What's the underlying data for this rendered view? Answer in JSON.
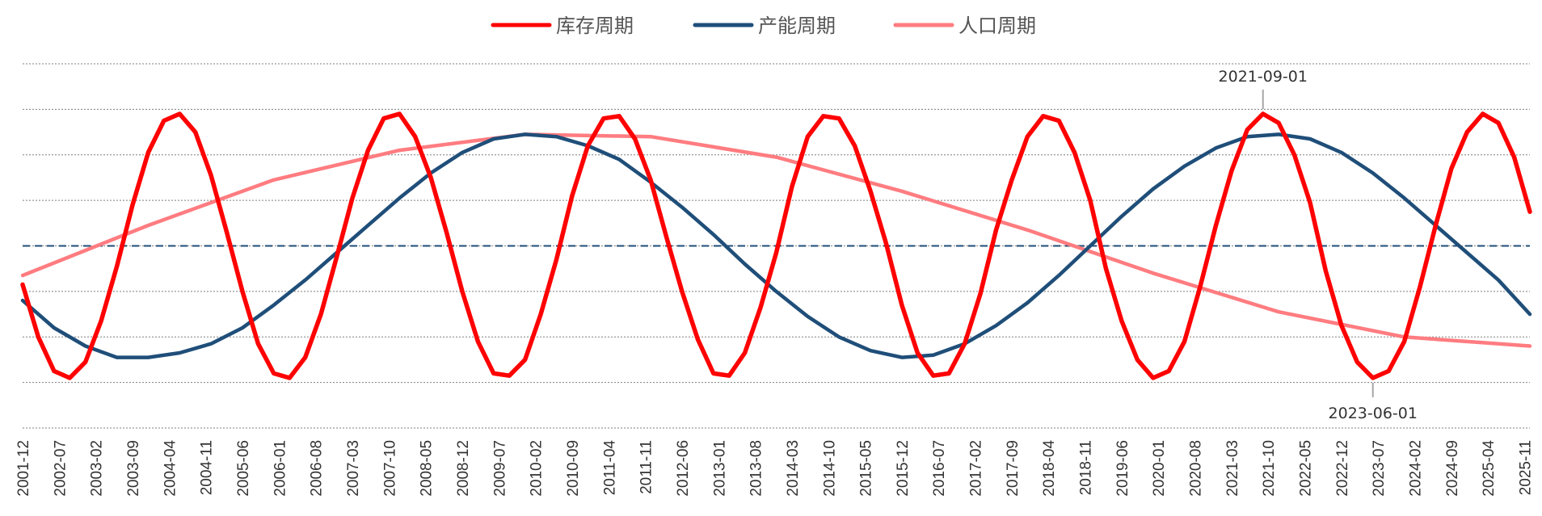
{
  "chart_data": {
    "type": "line",
    "title": "",
    "xlabel": "",
    "ylabel": "",
    "grid": true,
    "legend_position": "top-center",
    "ylim": [
      -4,
      4
    ],
    "y_gridlines": [
      -4,
      -3,
      -2,
      -1,
      0,
      1,
      2,
      3,
      4
    ],
    "reference_line": {
      "y": 0,
      "color": "#1f4e79",
      "style": "dashed"
    },
    "x_tick_labels": [
      "2001-12",
      "2002-07",
      "2003-02",
      "2003-09",
      "2004-04",
      "2004-11",
      "2005-06",
      "2006-01",
      "2006-08",
      "2007-03",
      "2007-10",
      "2008-05",
      "2008-12",
      "2009-07",
      "2010-02",
      "2010-09",
      "2011-04",
      "2011-11",
      "2012-06",
      "2013-01",
      "2013-08",
      "2014-03",
      "2014-10",
      "2015-05",
      "2015-12",
      "2016-07",
      "2017-02",
      "2017-09",
      "2018-04",
      "2018-11",
      "2019-06",
      "2020-01",
      "2020-08",
      "2021-03",
      "2021-10",
      "2022-05",
      "2022-12",
      "2023-07",
      "2024-02",
      "2024-09",
      "2025-04",
      "2025-11"
    ],
    "series": [
      {
        "name": "库存周期",
        "color": "#ff0000",
        "x": [
          "2001-12",
          "2002-03",
          "2002-06",
          "2002-09",
          "2002-12",
          "2003-03",
          "2003-06",
          "2003-09",
          "2003-12",
          "2004-03",
          "2004-06",
          "2004-09",
          "2004-12",
          "2005-03",
          "2005-06",
          "2005-09",
          "2005-12",
          "2006-03",
          "2006-06",
          "2006-09",
          "2006-12",
          "2007-03",
          "2007-06",
          "2007-09",
          "2007-12",
          "2008-03",
          "2008-06",
          "2008-09",
          "2008-12",
          "2009-03",
          "2009-06",
          "2009-09",
          "2009-12",
          "2010-03",
          "2010-06",
          "2010-09",
          "2010-12",
          "2011-03",
          "2011-06",
          "2011-09",
          "2011-12",
          "2012-03",
          "2012-06",
          "2012-09",
          "2012-12",
          "2013-03",
          "2013-06",
          "2013-09",
          "2013-12",
          "2014-03",
          "2014-06",
          "2014-09",
          "2014-12",
          "2015-03",
          "2015-06",
          "2015-09",
          "2015-12",
          "2016-03",
          "2016-06",
          "2016-09",
          "2016-12",
          "2017-03",
          "2017-06",
          "2017-09",
          "2017-12",
          "2018-03",
          "2018-06",
          "2018-09",
          "2018-12",
          "2019-03",
          "2019-06",
          "2019-09",
          "2019-12",
          "2020-03",
          "2020-06",
          "2020-09",
          "2020-12",
          "2021-03",
          "2021-06",
          "2021-09",
          "2021-12",
          "2022-03",
          "2022-06",
          "2022-09",
          "2022-12",
          "2023-03",
          "2023-06",
          "2023-09",
          "2023-12",
          "2024-03",
          "2024-06",
          "2024-09",
          "2024-12",
          "2025-03",
          "2025-06",
          "2025-09",
          "2025-12"
        ],
        "y": [
          -0.85,
          -2.0,
          -2.75,
          -2.9,
          -2.55,
          -1.65,
          -0.45,
          0.9,
          2.05,
          2.75,
          2.9,
          2.5,
          1.55,
          0.3,
          -1.0,
          -2.15,
          -2.8,
          -2.9,
          -2.45,
          -1.5,
          -0.25,
          1.05,
          2.1,
          2.8,
          2.9,
          2.4,
          1.5,
          0.3,
          -1.0,
          -2.1,
          -2.8,
          -2.85,
          -2.5,
          -1.5,
          -0.3,
          1.1,
          2.2,
          2.8,
          2.85,
          2.35,
          1.45,
          0.2,
          -1.0,
          -2.05,
          -2.8,
          -2.85,
          -2.35,
          -1.35,
          -0.15,
          1.3,
          2.4,
          2.85,
          2.8,
          2.2,
          1.2,
          0.05,
          -1.3,
          -2.35,
          -2.85,
          -2.8,
          -2.15,
          -1.05,
          0.35,
          1.45,
          2.4,
          2.85,
          2.75,
          2.05,
          1.0,
          -0.5,
          -1.65,
          -2.5,
          -2.9,
          -2.75,
          -2.1,
          -0.9,
          0.45,
          1.65,
          2.55,
          2.9,
          2.7,
          2.0,
          0.95,
          -0.55,
          -1.75,
          -2.55,
          -2.9,
          -2.75,
          -2.1,
          -0.9,
          0.45,
          1.7,
          2.5,
          2.9,
          2.7,
          1.95,
          0.75
        ]
      },
      {
        "name": "产能周期",
        "color": "#1f4e79",
        "x": [
          "2001-12",
          "2002-06",
          "2002-12",
          "2003-06",
          "2003-12",
          "2004-06",
          "2004-12",
          "2005-06",
          "2005-12",
          "2006-06",
          "2006-12",
          "2007-06",
          "2007-12",
          "2008-06",
          "2008-12",
          "2009-06",
          "2009-12",
          "2010-06",
          "2010-12",
          "2011-06",
          "2011-12",
          "2012-06",
          "2012-12",
          "2013-06",
          "2013-12",
          "2014-06",
          "2014-12",
          "2015-06",
          "2015-12",
          "2016-06",
          "2016-12",
          "2017-06",
          "2017-12",
          "2018-06",
          "2018-12",
          "2019-06",
          "2019-12",
          "2020-06",
          "2020-12",
          "2021-06",
          "2021-12",
          "2022-06",
          "2022-12",
          "2023-06",
          "2023-12",
          "2024-06",
          "2024-12",
          "2025-06",
          "2025-12"
        ],
        "y": [
          -1.2,
          -1.8,
          -2.2,
          -2.45,
          -2.45,
          -2.35,
          -2.15,
          -1.8,
          -1.3,
          -0.75,
          -0.15,
          0.45,
          1.05,
          1.6,
          2.05,
          2.35,
          2.45,
          2.4,
          2.2,
          1.9,
          1.4,
          0.85,
          0.25,
          -0.4,
          -1.0,
          -1.55,
          -2.0,
          -2.3,
          -2.45,
          -2.4,
          -2.15,
          -1.75,
          -1.25,
          -0.65,
          0.0,
          0.65,
          1.25,
          1.75,
          2.15,
          2.4,
          2.45,
          2.35,
          2.05,
          1.6,
          1.05,
          0.45,
          -0.15,
          -0.75,
          -1.5
        ]
      },
      {
        "name": "人口周期",
        "color": "#ff7c80",
        "x": [
          "2001-12",
          "2003-12",
          "2005-12",
          "2007-12",
          "2009-12",
          "2011-12",
          "2013-12",
          "2015-12",
          "2017-12",
          "2019-12",
          "2021-12",
          "2023-12",
          "2025-12"
        ],
        "y": [
          -0.65,
          0.45,
          1.45,
          2.1,
          2.45,
          2.4,
          1.95,
          1.2,
          0.35,
          -0.6,
          -1.45,
          -2.0,
          -2.2
        ]
      }
    ],
    "annotations": [
      {
        "label": "2021-09-01",
        "x": "2021-09",
        "y": 2.9,
        "label_position": "above"
      },
      {
        "label": "2023-06-01",
        "x": "2023-06",
        "y": -2.9,
        "label_position": "below"
      }
    ]
  }
}
